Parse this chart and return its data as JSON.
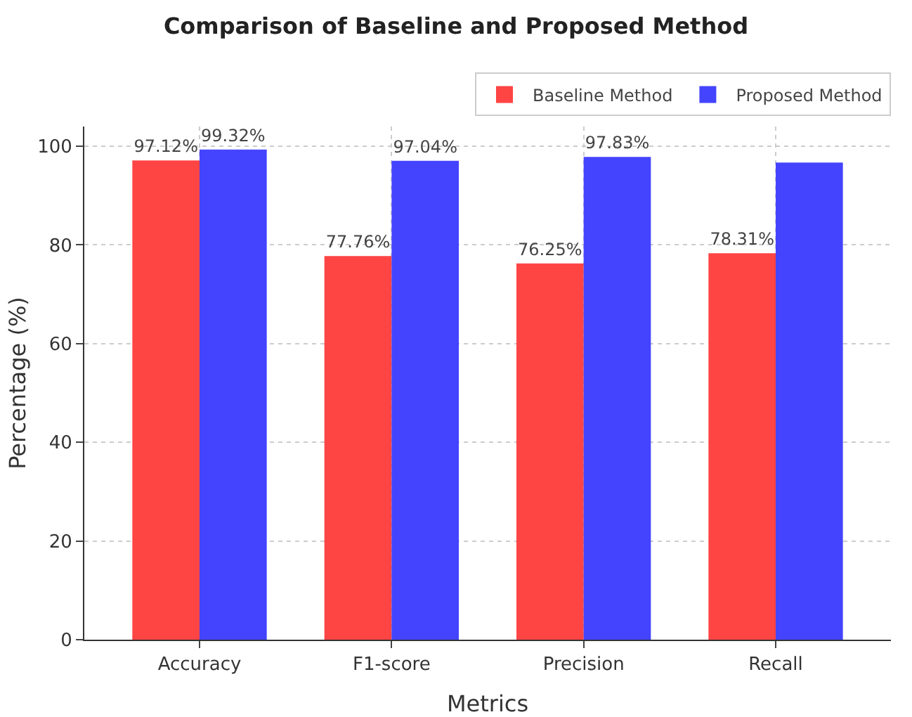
{
  "chart_data": {
    "type": "bar",
    "title": "Comparison of Baseline and Proposed Method",
    "xlabel": "Metrics",
    "ylabel": "Percentage (%)",
    "categories": [
      "Accuracy",
      "F1-score",
      "Precision",
      "Recall"
    ],
    "series": [
      {
        "name": "Baseline Method",
        "color": "#ff4444",
        "values": [
          97.12,
          77.76,
          76.25,
          78.31
        ],
        "value_labels": [
          "97.12%",
          "77.76%",
          "76.25%",
          "78.31%"
        ]
      },
      {
        "name": "Proposed Method",
        "color": "#4444ff",
        "values": [
          99.32,
          97.04,
          97.83,
          96.7
        ],
        "value_labels": [
          "99.32%",
          "97.04%",
          "97.83%",
          null
        ]
      }
    ],
    "ylim": [
      0,
      104
    ],
    "yticks": [
      0,
      20,
      40,
      60,
      80,
      100
    ],
    "grid": true,
    "legend": "top right"
  }
}
